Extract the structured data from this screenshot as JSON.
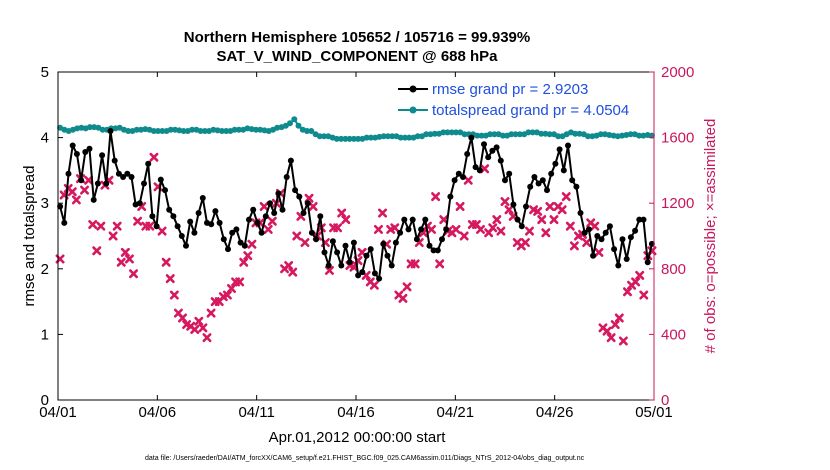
{
  "colors": {
    "rmse": "#000000",
    "spread": "#0f8b8d",
    "obs": "#d6185f",
    "right_axis": "#c8175d",
    "legend_text": "#1f4fe0"
  },
  "chart_data": {
    "type": "line",
    "title_line1": "Northern Hemisphere 105652 / 105716 = 99.939%",
    "title_line2": "SAT_V_WIND_COMPONENT @ 688 hPa",
    "xlabel": "Apr.01,2012 00:00:00 start",
    "ylabel": "rmse and totalspread",
    "ylabel_right": "# of obs: o=possible; ×=assimilated",
    "xlim": [
      0,
      30
    ],
    "ylim": [
      0,
      5
    ],
    "ylim_right": [
      0,
      2000
    ],
    "x_ticks": [
      0,
      5,
      10,
      15,
      20,
      25,
      30
    ],
    "x_tick_labels": [
      "04/01",
      "04/06",
      "04/11",
      "04/16",
      "04/21",
      "04/26",
      "05/01"
    ],
    "y_ticks": [
      0,
      1,
      2,
      3,
      4,
      5
    ],
    "y_tick_labels": [
      "0",
      "1",
      "2",
      "3",
      "4",
      "5"
    ],
    "y_ticks_right": [
      0,
      400,
      800,
      1200,
      1600,
      2000
    ],
    "y_tick_labels_right": [
      "0",
      "400",
      "800",
      "1200",
      "1600",
      "2000"
    ],
    "legend_position": "top-right",
    "series": [
      {
        "name": "rmse grand pr = 2.9203",
        "axis": "left",
        "style": "line-marker",
        "values": [
          2.95,
          2.7,
          3.45,
          3.88,
          3.75,
          3.35,
          3.78,
          3.83,
          3.05,
          3.3,
          3.73,
          3.3,
          4.1,
          3.65,
          3.45,
          3.4,
          3.45,
          3.4,
          2.98,
          3.0,
          3.3,
          3.6,
          2.8,
          2.65,
          3.36,
          3.2,
          2.9,
          2.8,
          2.65,
          2.5,
          2.35,
          2.72,
          2.55,
          2.85,
          3.08,
          2.7,
          2.68,
          2.88,
          2.7,
          2.45,
          2.3,
          2.55,
          2.6,
          2.4,
          2.35,
          2.75,
          2.9,
          2.7,
          2.55,
          2.8,
          3.0,
          2.85,
          3.15,
          2.9,
          3.4,
          3.65,
          3.2,
          3.1,
          2.85,
          3.0,
          2.55,
          2.45,
          2.8,
          2.25,
          2.05,
          2.42,
          2.25,
          2.05,
          2.35,
          2.1,
          2.4,
          1.9,
          1.95,
          2.2,
          2.3,
          1.93,
          1.85,
          2.38,
          2.2,
          2.05,
          2.4,
          2.55,
          2.75,
          2.6,
          2.75,
          2.45,
          2.6,
          2.75,
          2.35,
          2.28,
          2.28,
          2.45,
          2.6,
          3.1,
          3.35,
          3.45,
          3.4,
          3.75,
          4.0,
          3.55,
          3.5,
          3.9,
          3.7,
          3.8,
          3.85,
          3.65,
          3.35,
          3.45,
          2.98,
          2.75,
          2.65,
          2.95,
          3.25,
          3.4,
          3.3,
          3.35,
          3.2,
          3.45,
          3.6,
          3.82,
          3.5,
          3.88,
          3.35,
          3.25,
          2.85,
          2.55,
          2.6,
          2.2,
          2.5,
          2.45,
          2.55,
          2.65,
          2.3,
          2.05,
          2.45,
          2.15,
          2.48,
          2.58,
          2.75,
          2.75,
          2.1,
          2.38
        ]
      },
      {
        "name": "totalspread grand pr = 4.0504",
        "axis": "left",
        "style": "line-marker",
        "values": [
          4.15,
          4.12,
          4.1,
          4.12,
          4.14,
          4.15,
          4.14,
          4.16,
          4.16,
          4.15,
          4.12,
          4.12,
          4.14,
          4.14,
          4.15,
          4.12,
          4.1,
          4.1,
          4.12,
          4.12,
          4.13,
          4.12,
          4.1,
          4.1,
          4.1,
          4.1,
          4.12,
          4.12,
          4.11,
          4.1,
          4.1,
          4.12,
          4.12,
          4.1,
          4.1,
          4.1,
          4.12,
          4.11,
          4.1,
          4.1,
          4.1,
          4.12,
          4.12,
          4.12,
          4.14,
          4.13,
          4.12,
          4.12,
          4.11,
          4.1,
          4.12,
          4.15,
          4.16,
          4.18,
          4.22,
          4.28,
          4.18,
          4.12,
          4.1,
          4.1,
          4.05,
          4.02,
          4.02,
          4.02,
          4.0,
          3.98,
          3.98,
          3.98,
          3.98,
          3.98,
          3.98,
          3.98,
          4.0,
          4.0,
          4.0,
          4.01,
          4.02,
          4.02,
          4.02,
          4.02,
          4.0,
          4.0,
          4.0,
          4.0,
          4.02,
          4.02,
          4.05,
          4.05,
          4.06,
          4.06,
          4.08,
          4.08,
          4.08,
          4.08,
          4.08,
          4.05,
          4.05,
          4.05,
          4.03,
          4.03,
          4.03,
          4.05,
          4.05,
          4.05,
          4.03,
          4.03,
          4.05,
          4.05,
          4.05,
          4.05,
          4.08,
          4.08,
          4.08,
          4.06,
          4.06,
          4.05,
          4.05,
          4.02,
          4.02,
          4.05,
          4.08,
          4.06,
          4.06,
          4.05,
          4.02,
          4.02,
          4.03,
          4.05,
          4.05,
          4.04,
          4.03,
          4.02,
          4.03,
          4.04,
          4.05,
          4.05,
          4.03,
          4.03,
          4.04,
          4.03
        ]
      },
      {
        "name": "# of obs assimilated",
        "axis": "right",
        "style": "markers",
        "values": [
          860,
          1250,
          1290,
          1270,
          1220,
          1350,
          1280,
          1340,
          1070,
          910,
          1060,
          1310,
          1340,
          1000,
          1060,
          840,
          900,
          860,
          770,
          1090,
          1180,
          1060,
          1060,
          1480,
          1300,
          1030,
          840,
          740,
          640,
          530,
          500,
          460,
          450,
          430,
          480,
          440,
          380,
          530,
          600,
          600,
          630,
          640,
          680,
          720,
          720,
          840,
          880,
          950,
          1080,
          1080,
          1180,
          1040,
          1090,
          1200,
          1260,
          800,
          820,
          780,
          1000,
          1120,
          960,
          1230,
          1180,
          1000,
          1050,
          960,
          790,
          1050,
          1050,
          1140,
          1100,
          820,
          810,
          850,
          900,
          760,
          720,
          700,
          1040,
          1140,
          950,
          1040,
          1050,
          640,
          620,
          690,
          830,
          830,
          960,
          1020,
          1060,
          1040,
          1240,
          830,
          1100,
          1030,
          1020,
          1040,
          1180,
          1000,
          1340,
          1070,
          1070,
          1040,
          1410,
          1020,
          1050,
          1100,
          1030,
          1210,
          1160,
          1120,
          960,
          940,
          960,
          1030,
          1160,
          1150,
          1100,
          1020,
          1180,
          1100,
          1180,
          1160,
          1240,
          1060,
          940,
          1000,
          1010,
          960,
          1080,
          1060,
          900,
          440,
          420,
          380,
          460,
          500,
          360,
          660,
          700,
          720,
          760,
          640,
          880,
          910
        ]
      }
    ]
  },
  "footer": "data file: /Users/raeder/DAI/ATM_forcXX/CAM6_setup/f.e21.FHIST_BGC.f09_025.CAM6assim.011/Diags_NTrS_2012-04/obs_diag_output.nc"
}
